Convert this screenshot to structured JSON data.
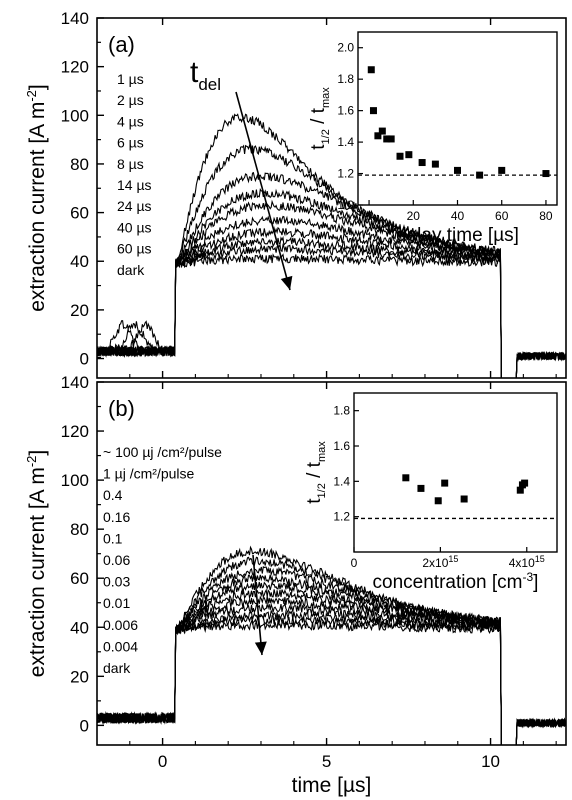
{
  "chart_data": [
    {
      "type": "line",
      "panel_label": "(a)",
      "ylabel": "extraction current [A m^-2]",
      "ylabel_main": "extraction current [A m",
      "ylabel_sup": "-2",
      "ylabel_tail": "]",
      "xlim": [
        -2,
        12.3
      ],
      "ylim": [
        -8,
        140
      ],
      "y_ticks": [
        0,
        20,
        40,
        60,
        80,
        100,
        120,
        140
      ],
      "arrow_label_main": "t",
      "arrow_label_sub": "del",
      "legend": [
        "1 µs",
        "2 µs",
        "4 µs",
        "6 µs",
        "8 µs",
        "14 µs",
        "24 µs",
        "40 µs",
        "60 µs",
        "dark"
      ],
      "baseline_level": 39,
      "pulse_window": [
        0.4,
        10.3
      ],
      "series": [
        {
          "name": "1 µs",
          "peak_t": 2.4,
          "peak_value": 99
        },
        {
          "name": "2 µs",
          "peak_t": 2.7,
          "peak_value": 86
        },
        {
          "name": "4 µs",
          "peak_t": 3.0,
          "peak_value": 75
        },
        {
          "name": "6 µs",
          "peak_t": 3.1,
          "peak_value": 68
        },
        {
          "name": "8 µs",
          "peak_t": 3.2,
          "peak_value": 63
        },
        {
          "name": "14 µs",
          "peak_t": 3.3,
          "peak_value": 57
        },
        {
          "name": "24 µs",
          "peak_t": 3.4,
          "peak_value": 52
        },
        {
          "name": "40 µs",
          "peak_t": 3.5,
          "peak_value": 48
        },
        {
          "name": "60 µs",
          "peak_t": 3.6,
          "peak_value": 45
        },
        {
          "name": "dark",
          "peak_t": 3.6,
          "peak_value": 41
        }
      ],
      "inset": {
        "type": "scatter",
        "xlabel": "delay time [µs]",
        "ylabel_main": "t",
        "ylabel_sub1": "1/2",
        "ylabel_mid": " / t",
        "ylabel_sub2": "max",
        "xlim": [
          -5,
          85
        ],
        "ylim": [
          1.0,
          2.1
        ],
        "x_ticks": [
          0,
          20,
          40,
          60,
          80
        ],
        "y_ticks": [
          1.0,
          1.2,
          1.4,
          1.6,
          1.8,
          2.0
        ],
        "y_tick_labels": [
          "1.0",
          "1.2",
          "1.4",
          "1.6",
          "1.8",
          "2.0"
        ],
        "reference_line": 1.19,
        "points": {
          "x": [
            1,
            2,
            4,
            6,
            8,
            10,
            14,
            18,
            24,
            30,
            40,
            50,
            60,
            80
          ],
          "y": [
            1.86,
            1.6,
            1.44,
            1.47,
            1.42,
            1.42,
            1.31,
            1.32,
            1.27,
            1.26,
            1.22,
            1.19,
            1.22,
            1.2
          ]
        }
      }
    },
    {
      "type": "line",
      "panel_label": "(b)",
      "ylabel": "extraction current [A m^-2]",
      "ylabel_main": "extraction current [A m",
      "ylabel_sup": "-2",
      "ylabel_tail": "]",
      "xlabel": "time [µs]",
      "xlim": [
        -2,
        12.3
      ],
      "ylim": [
        -8,
        140
      ],
      "x_ticks": [
        0,
        5,
        10
      ],
      "y_ticks": [
        0,
        20,
        40,
        60,
        80,
        100,
        120,
        140
      ],
      "legend": [
        "~ 100 µj /cm²/pulse",
        "1 µj /cm²/pulse",
        "0.4",
        "0.16",
        "0.1",
        "0.06",
        "0.03",
        "0.01",
        "0.006",
        "0.004",
        "dark"
      ],
      "baseline_level": 39,
      "pulse_window": [
        0.4,
        10.3
      ],
      "series": [
        {
          "name": "~ 100 µj /cm²/pulse",
          "peak_t": 2.8,
          "peak_value": 71
        },
        {
          "name": "1 µj /cm²/pulse",
          "peak_t": 2.9,
          "peak_value": 67
        },
        {
          "name": "0.4",
          "peak_t": 3.0,
          "peak_value": 63
        },
        {
          "name": "0.16",
          "peak_t": 3.0,
          "peak_value": 60
        },
        {
          "name": "0.1",
          "peak_t": 3.1,
          "peak_value": 57
        },
        {
          "name": "0.06",
          "peak_t": 3.1,
          "peak_value": 54
        },
        {
          "name": "0.03",
          "peak_t": 3.2,
          "peak_value": 51
        },
        {
          "name": "0.01",
          "peak_t": 3.2,
          "peak_value": 48
        },
        {
          "name": "0.006",
          "peak_t": 3.3,
          "peak_value": 45
        },
        {
          "name": "0.004",
          "peak_t": 3.3,
          "peak_value": 43
        },
        {
          "name": "dark",
          "peak_t": 3.3,
          "peak_value": 41
        }
      ],
      "inset": {
        "type": "scatter",
        "xlabel": "concentration [cm^-3]",
        "xlabel_main": "concentration [cm",
        "xlabel_sup": "-3",
        "xlabel_tail": "]",
        "ylabel_main": "t",
        "ylabel_sub1": "1/2",
        "ylabel_mid": " / t",
        "ylabel_sub2": "max",
        "xlim": [
          0,
          4700000000000000.0
        ],
        "ylim": [
          1.0,
          1.9
        ],
        "x_ticks": [
          0,
          2000000000000000.0,
          4000000000000000.0
        ],
        "x_tick_labels": [
          {
            "mant": "0",
            "exp": ""
          },
          {
            "mant": "2x10",
            "exp": "15"
          },
          {
            "mant": "4x10",
            "exp": "15"
          }
        ],
        "y_ticks": [
          1.2,
          1.4,
          1.6,
          1.8
        ],
        "y_tick_labels": [
          "1.2",
          "1.4",
          "1.6",
          "1.8"
        ],
        "reference_line": 1.19,
        "points": {
          "x": [
            1200000000000000.0,
            1550000000000000.0,
            1950000000000000.0,
            2100000000000000.0,
            2550000000000000.0,
            3850000000000000.0,
            3900000000000000.0,
            3950000000000000.0
          ],
          "y": [
            1.42,
            1.36,
            1.29,
            1.39,
            1.3,
            1.35,
            1.38,
            1.39
          ]
        }
      }
    }
  ]
}
